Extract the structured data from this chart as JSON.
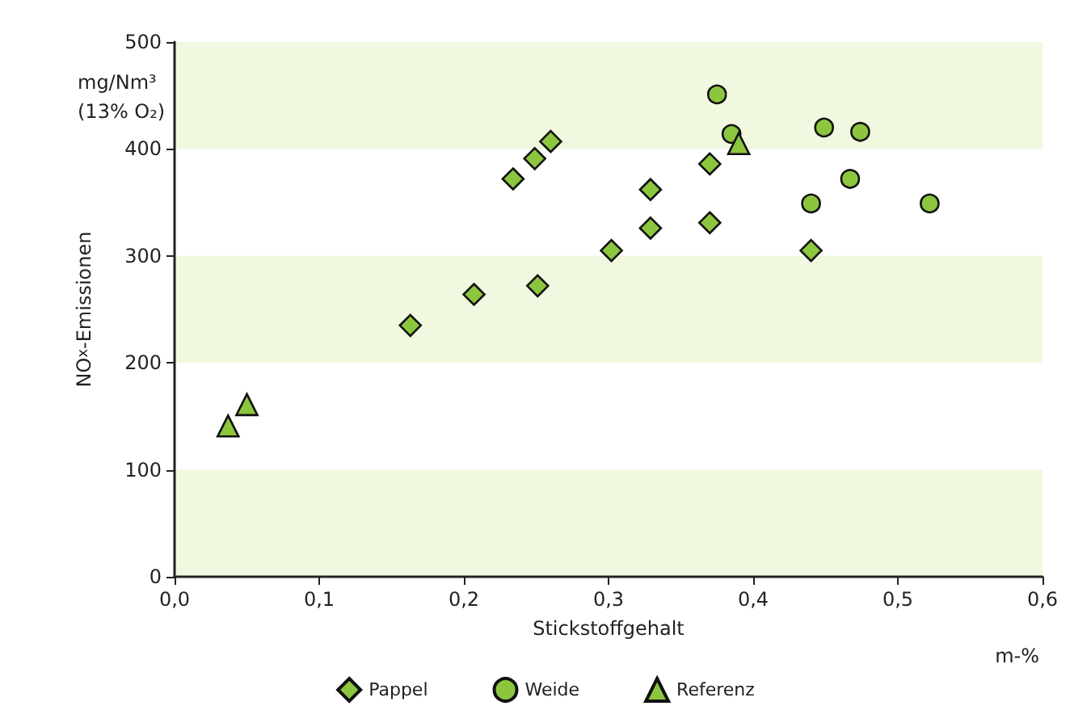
{
  "chart_data": {
    "type": "scatter",
    "xlabel": "Stickstoffgehalt",
    "ylabel": "NO$_{x}$-Emissionen",
    "annotations": [
      "mg/Nm³\n(13% O₂)",
      "m-%"
    ],
    "xlim": [
      0,
      0.6
    ],
    "xticks": [
      {
        "value": 0,
        "label": "0,0"
      },
      {
        "value": 0.1,
        "label": "0,1"
      },
      {
        "value": 0.2,
        "label": "0,2"
      },
      {
        "value": 0.3,
        "label": "0,3"
      },
      {
        "value": 0.4,
        "label": "0,4"
      },
      {
        "value": 0.5,
        "label": "0,5"
      },
      {
        "value": 0.6,
        "label": "0,6"
      }
    ],
    "ylim": [
      0,
      500
    ],
    "yticks": [
      0,
      100,
      200,
      300,
      400,
      500
    ],
    "grid": false,
    "legend": "bottom",
    "bands": [
      {
        "axis": "y",
        "from": 0,
        "to": 100,
        "color": "#f0f8e0"
      },
      {
        "axis": "y",
        "from": 200,
        "to": 300,
        "color": "#f0f8e0"
      },
      {
        "axis": "y",
        "from": 400,
        "to": 500,
        "color": "#f0f8e0"
      }
    ],
    "series": [
      {
        "name": "Pappel",
        "marker": "diamond",
        "color": "#8cc63f",
        "x": [
          0.163,
          0.207,
          0.234,
          0.249,
          0.26,
          0.251,
          0.302,
          0.329,
          0.329,
          0.37,
          0.37,
          0.44
        ],
        "values": [
          235,
          264,
          372,
          391,
          407,
          272,
          305,
          362,
          326,
          386,
          331,
          305
        ]
      },
      {
        "name": "Weide",
        "marker": "circle",
        "color": "#8cc63f",
        "x": [
          0.375,
          0.385,
          0.449,
          0.474,
          0.467,
          0.44,
          0.522
        ],
        "values": [
          451,
          414,
          420,
          416,
          372,
          349,
          349
        ]
      },
      {
        "name": "Referenz",
        "marker": "triangle",
        "color": "#8cc63f",
        "x": [
          0.037,
          0.05,
          0.39
        ],
        "values": [
          141,
          161,
          405
        ]
      }
    ]
  }
}
